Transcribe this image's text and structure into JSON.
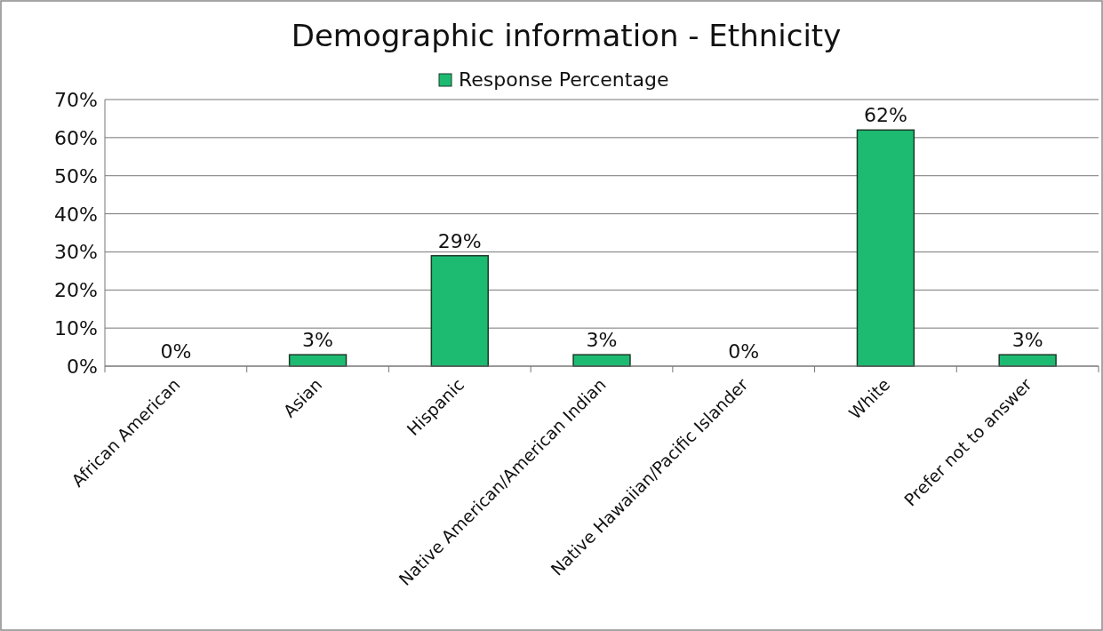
{
  "chart_data": {
    "type": "bar",
    "title": "Demographic information - Ethnicity",
    "categories": [
      "African American",
      "Asian",
      "Hispanic",
      "Native American/American Indian",
      "Native Hawaiian/Pacific Islander",
      "White",
      "Prefer not to answer"
    ],
    "series": [
      {
        "name": "Response Percentage",
        "color": "#1dbb72",
        "values": [
          0,
          3,
          29,
          3,
          0,
          62,
          3
        ],
        "value_labels": [
          "0%",
          "3%",
          "29%",
          "3%",
          "0%",
          "62%",
          "3%"
        ]
      }
    ],
    "ylim": [
      0,
      70
    ],
    "yticks": [
      {
        "value": 0,
        "label": "0%"
      },
      {
        "value": 10,
        "label": "10%"
      },
      {
        "value": 20,
        "label": "20%"
      },
      {
        "value": 30,
        "label": "30%"
      },
      {
        "value": 40,
        "label": "40%"
      },
      {
        "value": 50,
        "label": "50%"
      },
      {
        "value": 60,
        "label": "60%"
      },
      {
        "value": 70,
        "label": "70%"
      }
    ],
    "grid": "y",
    "legend": "top"
  }
}
